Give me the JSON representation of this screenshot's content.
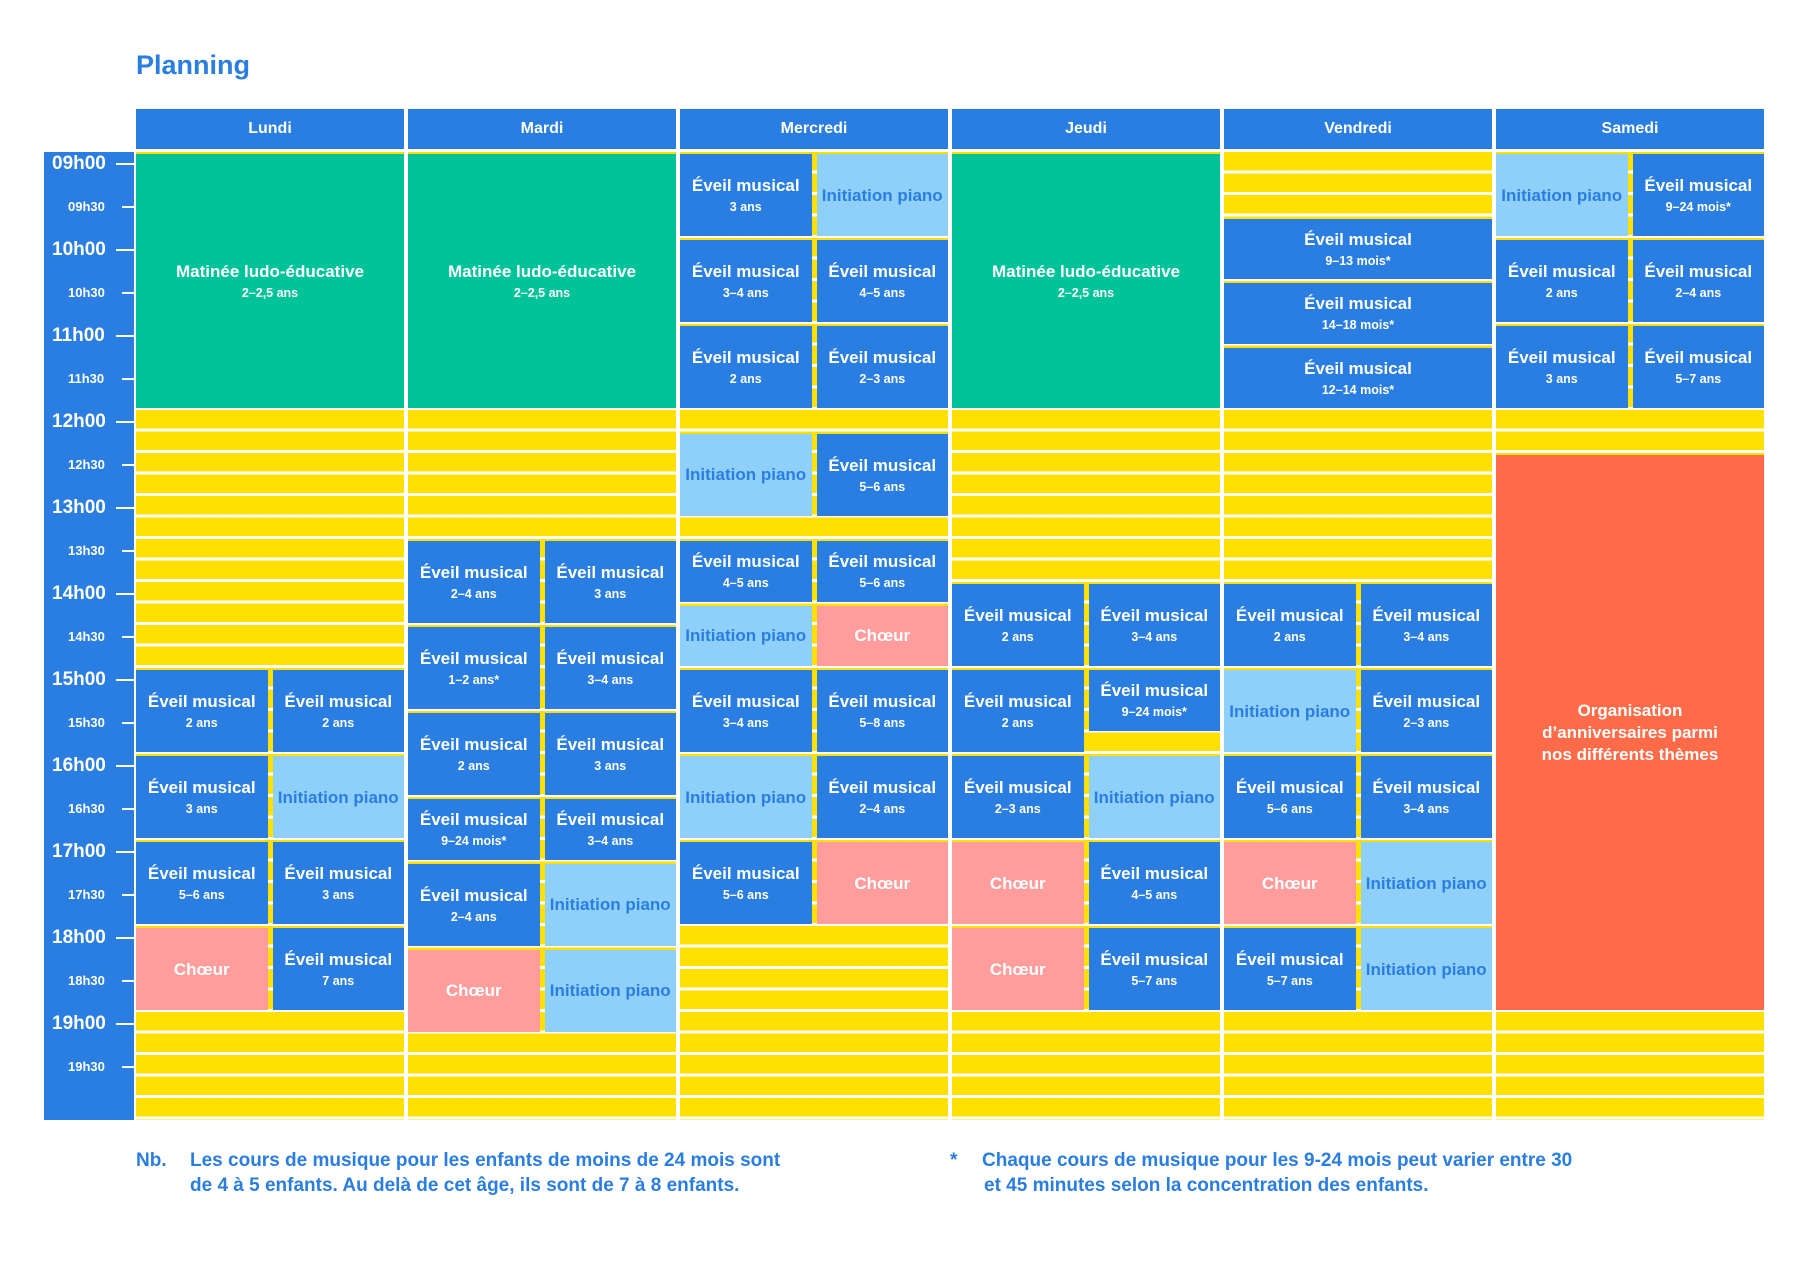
{
  "title": "Planning",
  "times": [
    {
      "label": "09h00",
      "major": true
    },
    {
      "label": "09h30",
      "major": false
    },
    {
      "label": "10h00",
      "major": true
    },
    {
      "label": "10h30",
      "major": false
    },
    {
      "label": "11h00",
      "major": true
    },
    {
      "label": "11h30",
      "major": false
    },
    {
      "label": "12h00",
      "major": true
    },
    {
      "label": "12h30",
      "major": false
    },
    {
      "label": "13h00",
      "major": true
    },
    {
      "label": "13h30",
      "major": false
    },
    {
      "label": "14h00",
      "major": true
    },
    {
      "label": "14h30",
      "major": false
    },
    {
      "label": "15h00",
      "major": true
    },
    {
      "label": "15h30",
      "major": false
    },
    {
      "label": "16h00",
      "major": true
    },
    {
      "label": "16h30",
      "major": false
    },
    {
      "label": "17h00",
      "major": true
    },
    {
      "label": "17h30",
      "major": false
    },
    {
      "label": "18h00",
      "major": true
    },
    {
      "label": "18h30",
      "major": false
    },
    {
      "label": "19h00",
      "major": true
    },
    {
      "label": "19h30",
      "major": false
    }
  ],
  "colors": {
    "eveil": "#2A7DE1",
    "piano": "#8FD0FB",
    "chorus": "#FF9C9C",
    "matinee": "#00C399",
    "party": "#FF6B48",
    "free": "#FFE000"
  },
  "days": [
    {
      "name": "Lundi",
      "blocks": [
        {
          "type": "matinee",
          "title": "Matinée ludo-éducative",
          "sub": "2–2,5 ans",
          "start": 9.0,
          "end": 12.0,
          "lane": "full"
        },
        {
          "type": "eveil",
          "title": "Éveil musical",
          "sub": "2 ans",
          "start": 15.0,
          "end": 16.0,
          "lane": "left"
        },
        {
          "type": "eveil",
          "title": "Éveil musical",
          "sub": "2 ans",
          "start": 15.0,
          "end": 16.0,
          "lane": "right"
        },
        {
          "type": "eveil",
          "title": "Éveil musical",
          "sub": "3 ans",
          "start": 16.0,
          "end": 17.0,
          "lane": "left"
        },
        {
          "type": "piano",
          "title": "Initiation piano",
          "sub": "",
          "start": 16.0,
          "end": 17.0,
          "lane": "right"
        },
        {
          "type": "eveil",
          "title": "Éveil musical",
          "sub": "5–6 ans",
          "start": 17.0,
          "end": 18.0,
          "lane": "left"
        },
        {
          "type": "eveil",
          "title": "Éveil musical",
          "sub": "3 ans",
          "start": 17.0,
          "end": 18.0,
          "lane": "right"
        },
        {
          "type": "chorus",
          "title": "Chœur",
          "sub": "",
          "start": 18.0,
          "end": 19.0,
          "lane": "left"
        },
        {
          "type": "eveil",
          "title": "Éveil musical",
          "sub": "7 ans",
          "start": 18.0,
          "end": 19.0,
          "lane": "right"
        }
      ]
    },
    {
      "name": "Mardi",
      "blocks": [
        {
          "type": "matinee",
          "title": "Matinée ludo-éducative",
          "sub": "2–2,5 ans",
          "start": 9.0,
          "end": 12.0,
          "lane": "full"
        },
        {
          "type": "eveil",
          "title": "Éveil musical",
          "sub": "2–4 ans",
          "start": 13.5,
          "end": 14.5,
          "lane": "left"
        },
        {
          "type": "eveil",
          "title": "Éveil musical",
          "sub": "3 ans",
          "start": 13.5,
          "end": 14.5,
          "lane": "right"
        },
        {
          "type": "eveil",
          "title": "Éveil musical",
          "sub": "1–2 ans*",
          "start": 14.5,
          "end": 15.5,
          "lane": "left"
        },
        {
          "type": "eveil",
          "title": "Éveil musical",
          "sub": "3–4 ans",
          "start": 14.5,
          "end": 15.5,
          "lane": "right"
        },
        {
          "type": "eveil",
          "title": "Éveil musical",
          "sub": "2 ans",
          "start": 15.5,
          "end": 16.5,
          "lane": "left"
        },
        {
          "type": "eveil",
          "title": "Éveil musical",
          "sub": "3 ans",
          "start": 15.5,
          "end": 16.5,
          "lane": "right"
        },
        {
          "type": "eveil",
          "title": "Éveil musical",
          "sub": "9–24 mois*",
          "start": 16.5,
          "end": 17.25,
          "lane": "left"
        },
        {
          "type": "eveil",
          "title": "Éveil musical",
          "sub": "3–4 ans",
          "start": 16.5,
          "end": 17.25,
          "lane": "right"
        },
        {
          "type": "eveil",
          "title": "Éveil musical",
          "sub": "2–4 ans",
          "start": 17.25,
          "end": 18.25,
          "lane": "left"
        },
        {
          "type": "piano",
          "title": "Initiation piano",
          "sub": "",
          "start": 17.25,
          "end": 18.25,
          "lane": "right"
        },
        {
          "type": "chorus",
          "title": "Chœur",
          "sub": "",
          "start": 18.25,
          "end": 19.25,
          "lane": "left"
        },
        {
          "type": "piano",
          "title": "Initiation piano",
          "sub": "",
          "start": 18.25,
          "end": 19.25,
          "lane": "right"
        }
      ]
    },
    {
      "name": "Mercredi",
      "blocks": [
        {
          "type": "eveil",
          "title": "Éveil musical",
          "sub": "3 ans",
          "start": 9.0,
          "end": 10.0,
          "lane": "left"
        },
        {
          "type": "piano",
          "title": "Initiation piano",
          "sub": "",
          "start": 9.0,
          "end": 10.0,
          "lane": "right"
        },
        {
          "type": "eveil",
          "title": "Éveil musical",
          "sub": "3–4 ans",
          "start": 10.0,
          "end": 11.0,
          "lane": "left"
        },
        {
          "type": "eveil",
          "title": "Éveil musical",
          "sub": "4–5 ans",
          "start": 10.0,
          "end": 11.0,
          "lane": "right"
        },
        {
          "type": "eveil",
          "title": "Éveil musical",
          "sub": "2 ans",
          "start": 11.0,
          "end": 12.0,
          "lane": "left"
        },
        {
          "type": "eveil",
          "title": "Éveil musical",
          "sub": "2–3 ans",
          "start": 11.0,
          "end": 12.0,
          "lane": "right"
        },
        {
          "type": "piano",
          "title": "Initiation piano",
          "sub": "",
          "start": 12.25,
          "end": 13.25,
          "lane": "left"
        },
        {
          "type": "eveil",
          "title": "Éveil musical",
          "sub": "5–6 ans",
          "start": 12.25,
          "end": 13.25,
          "lane": "right"
        },
        {
          "type": "eveil",
          "title": "Éveil musical",
          "sub": "4–5 ans",
          "start": 13.5,
          "end": 14.25,
          "lane": "left"
        },
        {
          "type": "eveil",
          "title": "Éveil musical",
          "sub": "5–6 ans",
          "start": 13.5,
          "end": 14.25,
          "lane": "right"
        },
        {
          "type": "piano",
          "title": "Initiation piano",
          "sub": "",
          "start": 14.25,
          "end": 15.0,
          "lane": "left"
        },
        {
          "type": "chorus",
          "title": "Chœur",
          "sub": "",
          "start": 14.25,
          "end": 15.0,
          "lane": "right"
        },
        {
          "type": "eveil",
          "title": "Éveil musical",
          "sub": "3–4 ans",
          "start": 15.0,
          "end": 16.0,
          "lane": "left"
        },
        {
          "type": "eveil",
          "title": "Éveil musical",
          "sub": "5–8 ans",
          "start": 15.0,
          "end": 16.0,
          "lane": "right"
        },
        {
          "type": "piano",
          "title": "Initiation piano",
          "sub": "",
          "start": 16.0,
          "end": 17.0,
          "lane": "left"
        },
        {
          "type": "eveil",
          "title": "Éveil musical",
          "sub": "2–4 ans",
          "start": 16.0,
          "end": 17.0,
          "lane": "right"
        },
        {
          "type": "eveil",
          "title": "Éveil musical",
          "sub": "5–6 ans",
          "start": 17.0,
          "end": 18.0,
          "lane": "left"
        },
        {
          "type": "chorus",
          "title": "Chœur",
          "sub": "",
          "start": 17.0,
          "end": 18.0,
          "lane": "right"
        }
      ]
    },
    {
      "name": "Jeudi",
      "blocks": [
        {
          "type": "matinee",
          "title": "Matinée ludo-éducative",
          "sub": "2–2,5 ans",
          "start": 9.0,
          "end": 12.0,
          "lane": "full"
        },
        {
          "type": "eveil",
          "title": "Éveil musical",
          "sub": "2 ans",
          "start": 14.0,
          "end": 15.0,
          "lane": "left"
        },
        {
          "type": "eveil",
          "title": "Éveil musical",
          "sub": "3–4 ans",
          "start": 14.0,
          "end": 15.0,
          "lane": "right"
        },
        {
          "type": "eveil",
          "title": "Éveil musical",
          "sub": "2 ans",
          "start": 15.0,
          "end": 16.0,
          "lane": "left"
        },
        {
          "type": "eveil",
          "title": "Éveil musical",
          "sub": "9–24 mois*",
          "start": 15.0,
          "end": 15.75,
          "lane": "right"
        },
        {
          "type": "eveil",
          "title": "Éveil musical",
          "sub": "2–3 ans",
          "start": 16.0,
          "end": 17.0,
          "lane": "left"
        },
        {
          "type": "piano",
          "title": "Initiation piano",
          "sub": "",
          "start": 16.0,
          "end": 17.0,
          "lane": "right"
        },
        {
          "type": "chorus",
          "title": "Chœur",
          "sub": "",
          "start": 17.0,
          "end": 18.0,
          "lane": "left"
        },
        {
          "type": "eveil",
          "title": "Éveil musical",
          "sub": "4–5 ans",
          "start": 17.0,
          "end": 18.0,
          "lane": "right"
        },
        {
          "type": "chorus",
          "title": "Chœur",
          "sub": "",
          "start": 18.0,
          "end": 19.0,
          "lane": "left"
        },
        {
          "type": "eveil",
          "title": "Éveil musical",
          "sub": "5–7 ans",
          "start": 18.0,
          "end": 19.0,
          "lane": "right"
        }
      ]
    },
    {
      "name": "Vendredi",
      "blocks": [
        {
          "type": "eveil",
          "title": "Éveil musical",
          "sub": "9–13 mois*",
          "start": 9.75,
          "end": 10.5,
          "lane": "full"
        },
        {
          "type": "eveil",
          "title": "Éveil musical",
          "sub": "14–18 mois*",
          "start": 10.5,
          "end": 11.25,
          "lane": "full"
        },
        {
          "type": "eveil",
          "title": "Éveil musical",
          "sub": "12–14 mois*",
          "start": 11.25,
          "end": 12.0,
          "lane": "full"
        },
        {
          "type": "eveil",
          "title": "Éveil musical",
          "sub": "2 ans",
          "start": 14.0,
          "end": 15.0,
          "lane": "left"
        },
        {
          "type": "eveil",
          "title": "Éveil musical",
          "sub": "3–4 ans",
          "start": 14.0,
          "end": 15.0,
          "lane": "right"
        },
        {
          "type": "piano",
          "title": "Initiation piano",
          "sub": "",
          "start": 15.0,
          "end": 16.0,
          "lane": "left"
        },
        {
          "type": "eveil",
          "title": "Éveil musical",
          "sub": "2–3 ans",
          "start": 15.0,
          "end": 16.0,
          "lane": "right"
        },
        {
          "type": "eveil",
          "title": "Éveil musical",
          "sub": "5–6 ans",
          "start": 16.0,
          "end": 17.0,
          "lane": "left"
        },
        {
          "type": "eveil",
          "title": "Éveil musical",
          "sub": "3–4 ans",
          "start": 16.0,
          "end": 17.0,
          "lane": "right"
        },
        {
          "type": "chorus",
          "title": "Chœur",
          "sub": "",
          "start": 17.0,
          "end": 18.0,
          "lane": "left"
        },
        {
          "type": "piano",
          "title": "Initiation piano",
          "sub": "",
          "start": 17.0,
          "end": 18.0,
          "lane": "right"
        },
        {
          "type": "eveil",
          "title": "Éveil musical",
          "sub": "5–7 ans",
          "start": 18.0,
          "end": 19.0,
          "lane": "left"
        },
        {
          "type": "piano",
          "title": "Initiation piano",
          "sub": "",
          "start": 18.0,
          "end": 19.0,
          "lane": "right"
        }
      ]
    },
    {
      "name": "Samedi",
      "blocks": [
        {
          "type": "piano",
          "title": "Initiation piano",
          "sub": "",
          "start": 9.0,
          "end": 10.0,
          "lane": "left"
        },
        {
          "type": "eveil",
          "title": "Éveil musical",
          "sub": "9–24 mois*",
          "start": 9.0,
          "end": 10.0,
          "lane": "right"
        },
        {
          "type": "eveil",
          "title": "Éveil musical",
          "sub": "2 ans",
          "start": 10.0,
          "end": 11.0,
          "lane": "left"
        },
        {
          "type": "eveil",
          "title": "Éveil musical",
          "sub": "2–4 ans",
          "start": 10.0,
          "end": 11.0,
          "lane": "right"
        },
        {
          "type": "eveil",
          "title": "Éveil musical",
          "sub": "3 ans",
          "start": 11.0,
          "end": 12.0,
          "lane": "left"
        },
        {
          "type": "eveil",
          "title": "Éveil musical",
          "sub": "5–7 ans",
          "start": 11.0,
          "end": 12.0,
          "lane": "right"
        },
        {
          "type": "party",
          "title": "Organisation d’anniversaires parmi nos différents thèmes",
          "sub": "",
          "start": 12.5,
          "end": 19.0,
          "lane": "full"
        }
      ]
    }
  ],
  "notes": {
    "nb_mark": "Nb.",
    "nb_text_1": "Les cours de musique pour les enfants de moins de 24 mois sont",
    "nb_text_2": "de 4 à 5 enfants. Au delà de cet âge, ils sont de 7 à 8 enfants.",
    "star_mark": "*",
    "star_text_1": "Chaque cours de musique pour les 9-24 mois peut varier entre 30",
    "star_text_2": "et 45 minutes selon la concentration des enfants."
  }
}
